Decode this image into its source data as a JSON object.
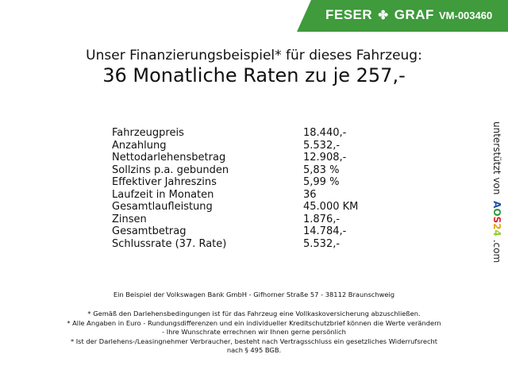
{
  "header": {
    "brand_left": "FESER",
    "brand_right": "GRAF",
    "vehicle_code": "VM-003460",
    "brand_color": "#3f9b3c",
    "logo_icon": "clover-icon"
  },
  "title": {
    "line1": "Unser Finanzierungsbeispiel* für dieses Fahrzeug:",
    "line2": "36 Monatliche Raten zu je 257,-"
  },
  "rows": [
    {
      "label": "Fahrzeugpreis",
      "value": "18.440,-"
    },
    {
      "label": "Anzahlung",
      "value": "5.532,-"
    },
    {
      "label": "Nettodarlehensbetrag",
      "value": "12.908,-"
    },
    {
      "label": "Sollzins p.a. gebunden",
      "value": "5,83 %"
    },
    {
      "label": "Effektiver Jahreszins",
      "value": "5,99 %"
    },
    {
      "label": "Laufzeit in Monaten",
      "value": "36"
    },
    {
      "label": "Gesamtlaufleistung",
      "value": "45.000 KM"
    },
    {
      "label": "Zinsen",
      "value": "1.876,-"
    },
    {
      "label": "Gesamtbetrag",
      "value": "14.784,-"
    },
    {
      "label": "Schlussrate (37. Rate)",
      "value": "5.532,-"
    }
  ],
  "side": {
    "prefix": "unterstützt von",
    "logo": "AOS24",
    "suffix": ".com"
  },
  "footer": {
    "bank": "Ein Beispiel der Volkswagen Bank GmbH - Gifhorner Straße 57 - 38112 Braunschweig",
    "note1": "* Gemäß den Darlehensbedingungen ist für das Fahrzeug eine Vollkaskoversicherung abzuschließen.",
    "note2a": "* Alle Angaben in Euro - Rundungsdifferenzen und ein individueller Kreditschutzbrief können die Werte verändern",
    "note2b": "- Ihre Wunschrate errechnen wir Ihnen gerne persönlich",
    "note3a": "* Ist der Darlehens-/Leasingnehmer Verbraucher, besteht nach Vertragsschluss ein gesetzliches Widerrufsrecht",
    "note3b": "nach § 495 BGB."
  }
}
